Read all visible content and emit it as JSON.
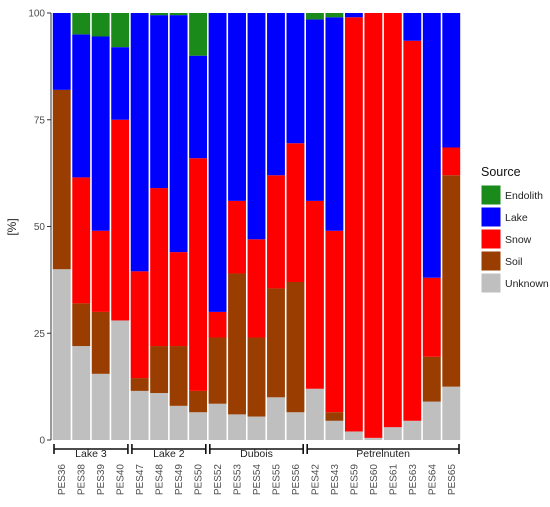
{
  "chart_data": {
    "type": "bar",
    "stacked": true,
    "ylabel": "[%]",
    "xlabel": "",
    "ylim": [
      0,
      100
    ],
    "yticks": [
      0,
      25,
      50,
      75,
      100
    ],
    "grid": false,
    "legend": {
      "title": "Source",
      "position": "right",
      "entries": [
        "Endolith",
        "Lake",
        "Snow",
        "Soil",
        "Unknown"
      ]
    },
    "colors": {
      "Endolith": "#1a8a1a",
      "Lake": "#0000ff",
      "Snow": "#ff0000",
      "Soil": "#993d00",
      "Unknown": "#bfbfbf"
    },
    "stack_order": [
      "Unknown",
      "Soil",
      "Snow",
      "Lake",
      "Endolith"
    ],
    "categories": [
      "PES36",
      "PES38",
      "PES39",
      "PES40",
      "PES47",
      "PES48",
      "PES49",
      "PES50",
      "PES52",
      "PES53",
      "PES54",
      "PES55",
      "PES56",
      "PES42",
      "PES43",
      "PES59",
      "PES60",
      "PES61",
      "PES63",
      "PES64",
      "PES65"
    ],
    "groups": [
      {
        "label": "Lake 3",
        "start": 0,
        "end": 3
      },
      {
        "label": "Lake 2",
        "start": 4,
        "end": 7
      },
      {
        "label": "Dubois",
        "start": 8,
        "end": 12
      },
      {
        "label": "Petrelnuten",
        "start": 13,
        "end": 20
      }
    ],
    "series": [
      {
        "name": "Unknown",
        "values": [
          40,
          22,
          15.5,
          28,
          11.5,
          11,
          8,
          6.5,
          8.5,
          6,
          5.5,
          10,
          6.5,
          12,
          4.5,
          2,
          0.5,
          3,
          4.5,
          9,
          12.5
        ]
      },
      {
        "name": "Soil",
        "values": [
          42,
          10,
          14.5,
          0,
          3,
          11,
          14,
          5,
          15.5,
          33,
          18.5,
          25.5,
          30.5,
          0,
          2,
          0,
          0,
          0,
          0,
          10.5,
          49.5
        ]
      },
      {
        "name": "Snow",
        "values": [
          0,
          29.5,
          19,
          47,
          25,
          37,
          22,
          54.5,
          6,
          17,
          23,
          26.5,
          32.5,
          44,
          42.5,
          97,
          99.5,
          97,
          89,
          18.5,
          6.5
        ]
      },
      {
        "name": "Lake",
        "values": [
          18,
          33.5,
          45.5,
          17,
          60.5,
          40.5,
          55.5,
          24,
          70,
          44,
          53,
          38,
          30.5,
          42.5,
          50,
          1,
          0,
          0,
          6.5,
          62,
          31.5
        ]
      },
      {
        "name": "Endolith",
        "values": [
          0,
          5,
          5.5,
          8,
          0,
          0.5,
          0.5,
          10,
          0,
          0,
          0,
          0,
          0,
          1.5,
          1,
          0,
          0,
          0,
          0,
          0,
          0
        ]
      }
    ]
  }
}
